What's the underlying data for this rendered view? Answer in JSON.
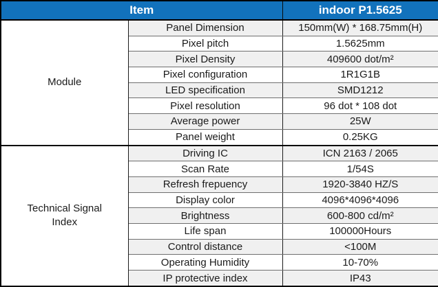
{
  "header": {
    "item_label": "Item",
    "product_label": "indoor P1.5625"
  },
  "colors": {
    "header_bg": "#1272BC",
    "header_text": "#FFFFFF",
    "row_alt_bg": "#F0F0F0",
    "row_bg": "#FFFFFF",
    "border_dark": "#000000",
    "text": "#1A1A1A"
  },
  "sections": [
    {
      "label": "Module",
      "rows": [
        {
          "property": "Panel Dimension",
          "value": "150mm(W) * 168.75mm(H)"
        },
        {
          "property": "Pixel pitch",
          "value": "1.5625mm"
        },
        {
          "property": "Pixel Density",
          "value": "409600  dot/m²"
        },
        {
          "property": "Pixel configuration",
          "value": "1R1G1B"
        },
        {
          "property": "LED specification",
          "value": "SMD1212"
        },
        {
          "property": "Pixel resolution",
          "value": "96 dot * 108 dot"
        },
        {
          "property": "Average power",
          "value": "25W"
        },
        {
          "property": "Panel weight",
          "value": "0.25KG"
        }
      ]
    },
    {
      "label": "Technical Signal Index",
      "rows": [
        {
          "property": "Driving IC",
          "value": "ICN 2163 / 2065"
        },
        {
          "property": "Scan Rate",
          "value": "1/54S"
        },
        {
          "property": "Refresh frepuency",
          "value": "1920-3840 HZ/S"
        },
        {
          "property": "Display color",
          "value": "4096*4096*4096"
        },
        {
          "property": "Brightness",
          "value": "600-800 cd/m²"
        },
        {
          "property": "Life span",
          "value": "100000Hours"
        },
        {
          "property": "Control distance",
          "value": "<100M"
        },
        {
          "property": "Operating Humidity",
          "value": "10-70%"
        },
        {
          "property": "IP protective index",
          "value": "IP43"
        }
      ]
    }
  ]
}
